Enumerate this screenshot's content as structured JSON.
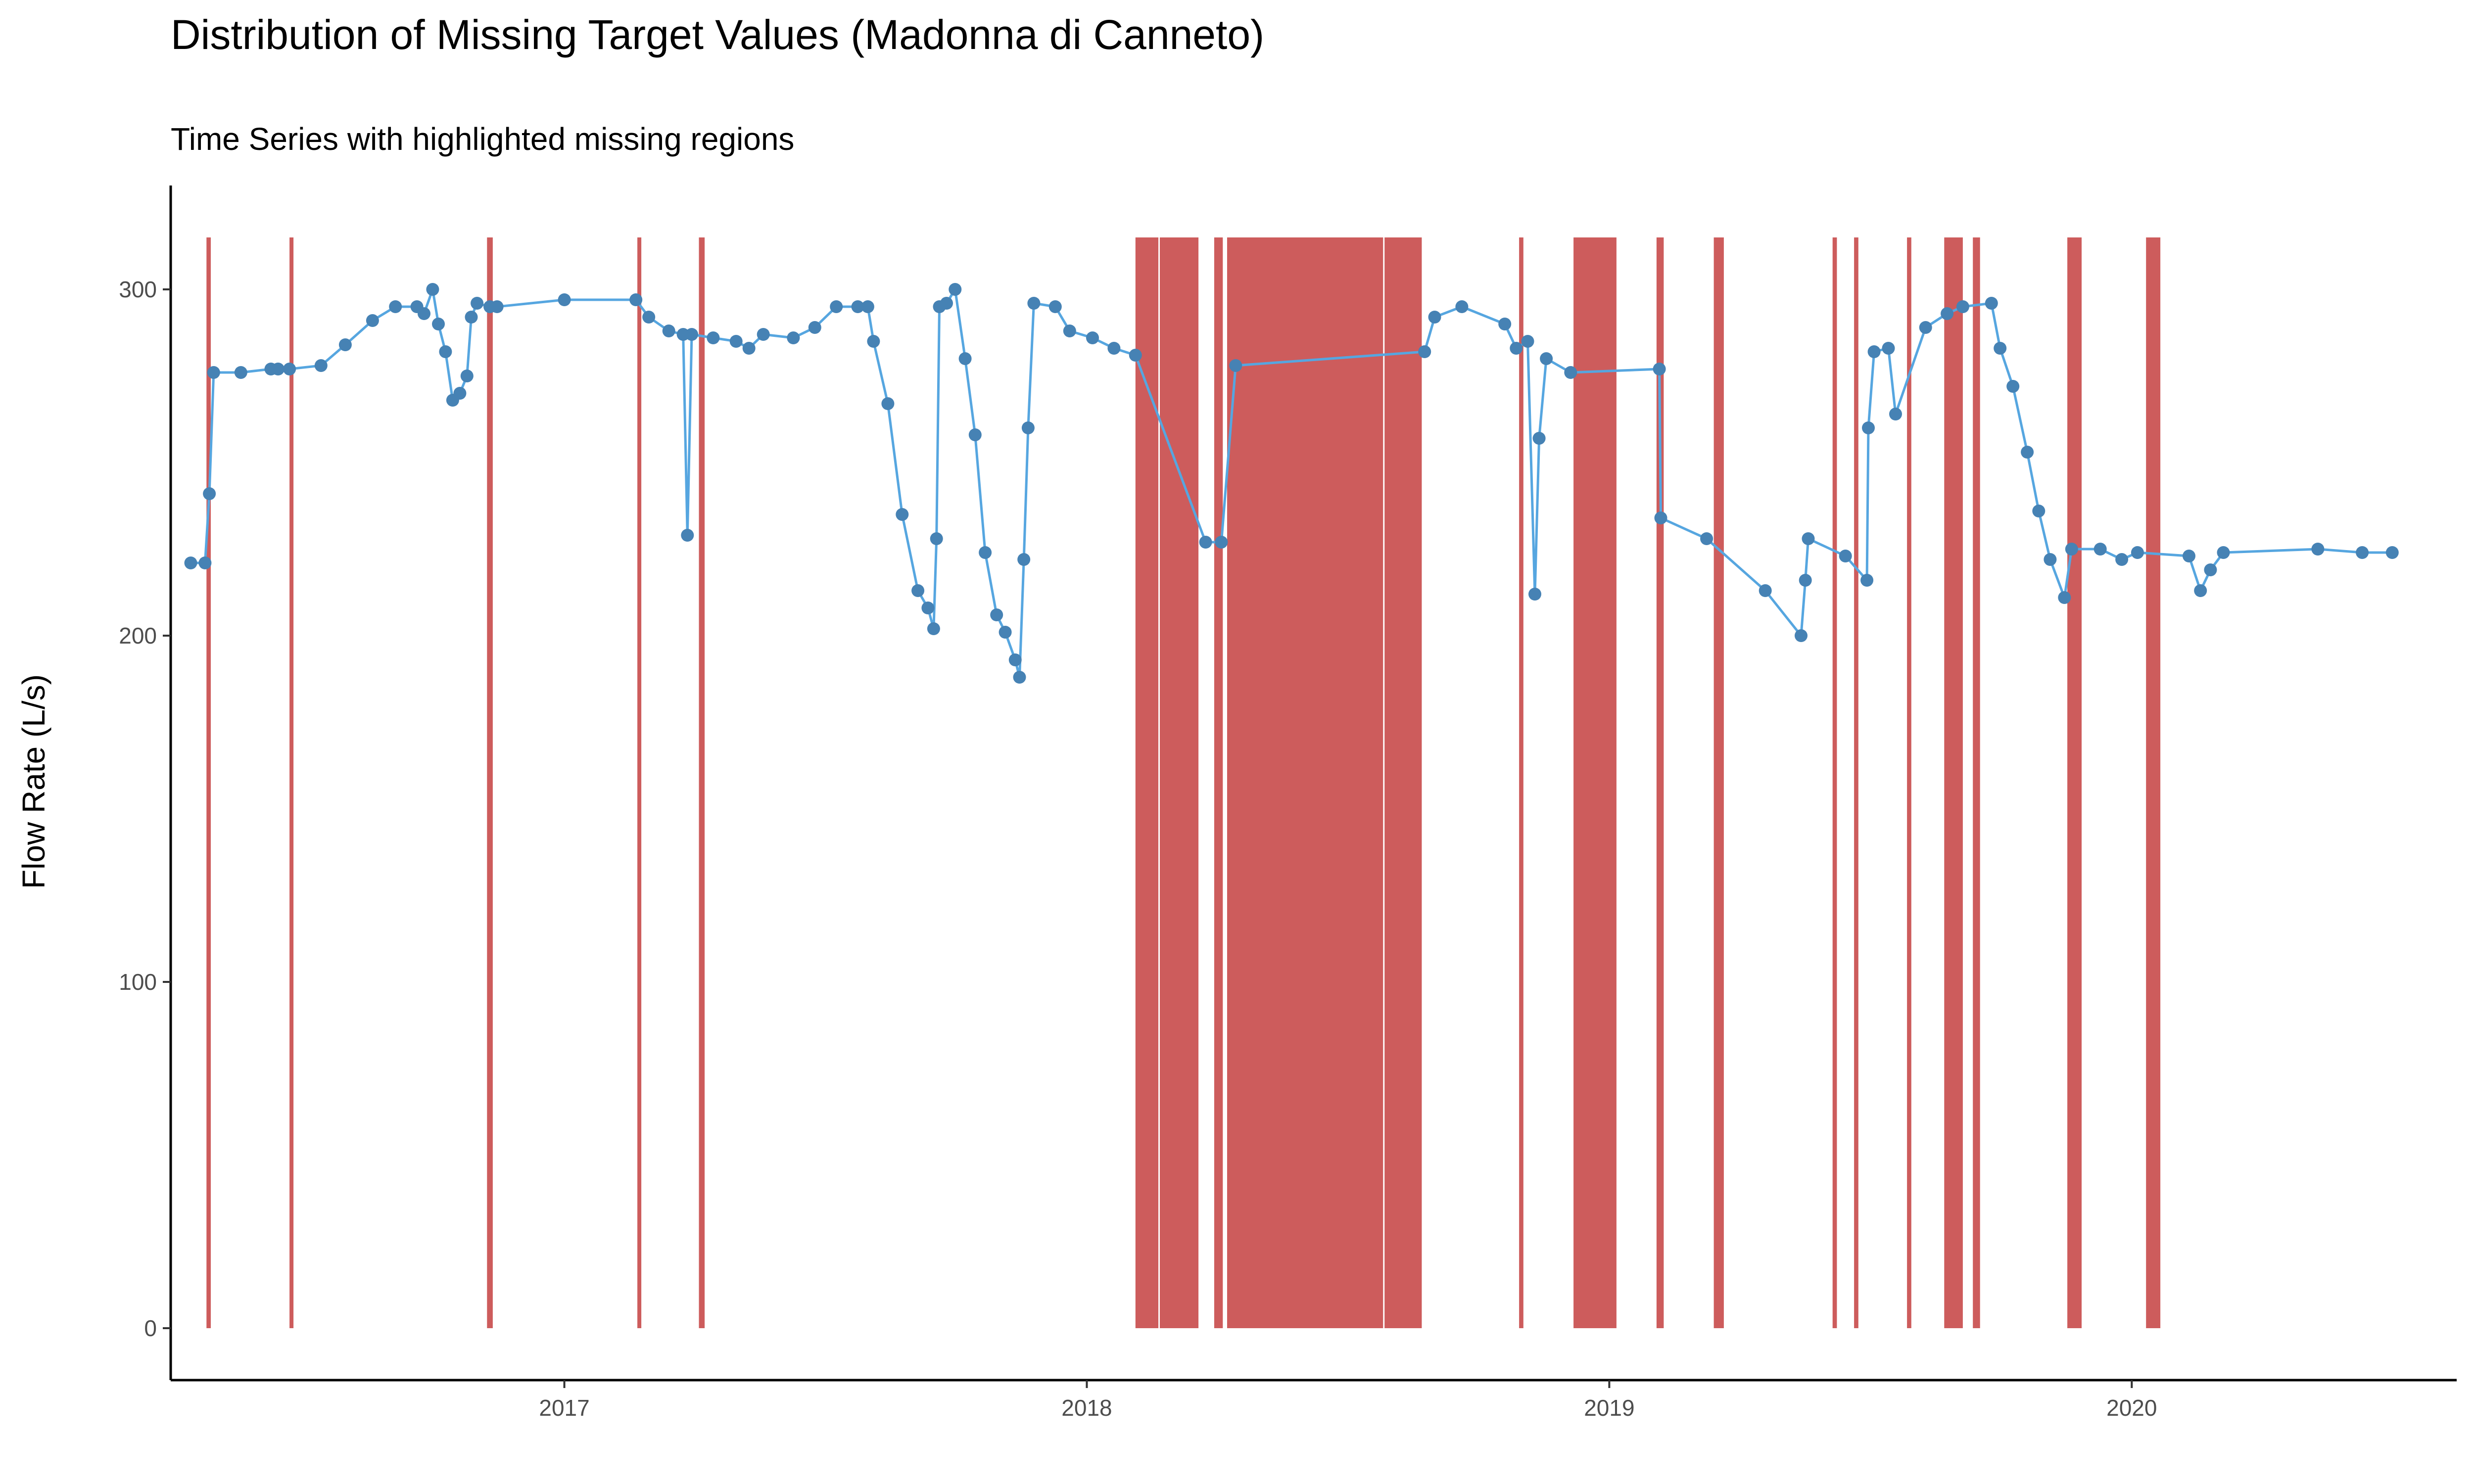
{
  "chart_data": {
    "type": "line",
    "title": "Distribution of Missing Target Values (Madonna di Canneto)",
    "subtitle": "Time Series with highlighted missing regions",
    "xlabel": "",
    "ylabel": "Flow Rate (L/s)",
    "x_ticks": [
      "2017",
      "2018",
      "2019",
      "2020"
    ],
    "y_ticks": [
      0,
      100,
      200,
      300
    ],
    "ylim": [
      -15,
      330
    ],
    "xlim": [
      "2016-04-01",
      "2020-08-15"
    ],
    "grid": false,
    "colors": {
      "missing": "#cd5c5c",
      "line": "#56a6e0",
      "points": "#4682b4",
      "axis": "#000000"
    },
    "series": [
      {
        "points": [
          [
            "2016-04-15",
            221
          ],
          [
            "2016-04-25",
            221
          ],
          [
            "2016-04-28",
            241
          ],
          [
            "2016-05-01",
            276
          ],
          [
            "2016-05-20",
            276
          ],
          [
            "2016-06-10",
            277
          ],
          [
            "2016-06-15",
            277
          ],
          [
            "2016-06-23",
            277
          ],
          [
            "2016-07-15",
            278
          ],
          [
            "2016-08-01",
            284
          ],
          [
            "2016-08-20",
            291
          ],
          [
            "2016-09-05",
            295
          ],
          [
            "2016-09-20",
            295
          ],
          [
            "2016-09-25",
            293
          ],
          [
            "2016-10-01",
            300
          ],
          [
            "2016-10-05",
            290
          ],
          [
            "2016-10-10",
            282
          ],
          [
            "2016-10-15",
            268
          ],
          [
            "2016-10-20",
            270
          ],
          [
            "2016-10-25",
            275
          ],
          [
            "2016-10-28",
            292
          ],
          [
            "2016-11-01",
            296
          ],
          [
            "2016-11-10",
            295
          ],
          [
            "2016-11-15",
            295
          ],
          [
            "2017-01-01",
            297
          ],
          [
            "2017-02-20",
            297
          ],
          [
            "2017-03-01",
            292
          ],
          [
            "2017-03-15",
            288
          ],
          [
            "2017-03-25",
            287
          ],
          [
            "2017-03-28",
            229
          ],
          [
            "2017-03-31",
            287
          ],
          [
            "2017-04-15",
            286
          ],
          [
            "2017-05-01",
            285
          ],
          [
            "2017-05-10",
            283
          ],
          [
            "2017-05-20",
            287
          ],
          [
            "2017-06-10",
            286
          ],
          [
            "2017-06-25",
            289
          ],
          [
            "2017-07-10",
            295
          ],
          [
            "2017-07-25",
            295
          ],
          [
            "2017-08-01",
            295
          ],
          [
            "2017-08-05",
            285
          ],
          [
            "2017-08-15",
            267
          ],
          [
            "2017-08-25",
            235
          ],
          [
            "2017-09-05",
            213
          ],
          [
            "2017-09-12",
            208
          ],
          [
            "2017-09-16",
            202
          ],
          [
            "2017-09-18",
            228
          ],
          [
            "2017-09-20",
            295
          ],
          [
            "2017-09-25",
            296
          ],
          [
            "2017-10-01",
            300
          ],
          [
            "2017-10-08",
            280
          ],
          [
            "2017-10-15",
            258
          ],
          [
            "2017-10-22",
            224
          ],
          [
            "2017-10-30",
            206
          ],
          [
            "2017-11-05",
            201
          ],
          [
            "2017-11-12",
            193
          ],
          [
            "2017-11-15",
            188
          ],
          [
            "2017-11-18",
            222
          ],
          [
            "2017-11-21",
            260
          ],
          [
            "2017-11-25",
            296
          ],
          [
            "2017-12-10",
            295
          ],
          [
            "2017-12-20",
            288
          ],
          [
            "2018-01-05",
            286
          ],
          [
            "2018-01-20",
            283
          ],
          [
            "2018-02-04",
            281
          ],
          [
            "2018-03-25",
            227
          ],
          [
            "2018-04-05",
            227
          ],
          [
            "2018-04-15",
            278
          ],
          [
            "2018-08-25",
            282
          ],
          [
            "2018-09-01",
            292
          ],
          [
            "2018-09-20",
            295
          ],
          [
            "2018-10-20",
            290
          ],
          [
            "2018-10-28",
            283
          ],
          [
            "2018-11-05",
            285
          ],
          [
            "2018-11-10",
            212
          ],
          [
            "2018-11-13",
            257
          ],
          [
            "2018-11-18",
            280
          ],
          [
            "2018-12-05",
            276
          ],
          [
            "2019-02-05",
            277
          ],
          [
            "2019-02-06",
            234
          ],
          [
            "2019-03-10",
            228
          ],
          [
            "2019-04-20",
            213
          ],
          [
            "2019-05-15",
            200
          ],
          [
            "2019-05-18",
            216
          ],
          [
            "2019-05-20",
            228
          ],
          [
            "2019-06-15",
            223
          ],
          [
            "2019-06-30",
            216
          ],
          [
            "2019-07-01",
            260
          ],
          [
            "2019-07-05",
            282
          ],
          [
            "2019-07-15",
            283
          ],
          [
            "2019-07-20",
            264
          ],
          [
            "2019-08-10",
            289
          ],
          [
            "2019-08-25",
            293
          ],
          [
            "2019-09-05",
            295
          ],
          [
            "2019-09-25",
            296
          ],
          [
            "2019-10-01",
            283
          ],
          [
            "2019-10-10",
            272
          ],
          [
            "2019-10-20",
            253
          ],
          [
            "2019-10-28",
            236
          ],
          [
            "2019-11-05",
            222
          ],
          [
            "2019-11-15",
            211
          ],
          [
            "2019-11-20",
            225
          ],
          [
            "2019-12-10",
            225
          ],
          [
            "2019-12-25",
            222
          ],
          [
            "2020-01-05",
            224
          ],
          [
            "2020-02-10",
            223
          ],
          [
            "2020-02-18",
            213
          ],
          [
            "2020-02-25",
            219
          ],
          [
            "2020-03-05",
            224
          ],
          [
            "2020-05-10",
            225
          ],
          [
            "2020-06-10",
            224
          ],
          [
            "2020-07-01",
            224
          ]
        ]
      }
    ],
    "missing_regions": [
      [
        "2016-04-26",
        "2016-04-29"
      ],
      [
        "2016-06-23",
        "2016-06-25"
      ],
      [
        "2016-11-08",
        "2016-11-12"
      ],
      [
        "2017-02-21",
        "2017-02-23"
      ],
      [
        "2017-04-05",
        "2017-04-09"
      ],
      [
        "2018-02-04",
        "2018-02-20"
      ],
      [
        "2018-02-21",
        "2018-03-20"
      ],
      [
        "2018-03-31",
        "2018-04-06"
      ],
      [
        "2018-04-09",
        "2018-07-27"
      ],
      [
        "2018-07-28",
        "2018-08-23"
      ],
      [
        "2018-10-30",
        "2018-11-02"
      ],
      [
        "2018-12-07",
        "2019-01-06"
      ],
      [
        "2019-02-03",
        "2019-02-08"
      ],
      [
        "2019-03-15",
        "2019-03-22"
      ],
      [
        "2019-06-06",
        "2019-06-09"
      ],
      [
        "2019-06-21",
        "2019-06-24"
      ],
      [
        "2019-07-28",
        "2019-07-31"
      ],
      [
        "2019-08-23",
        "2019-09-05"
      ],
      [
        "2019-09-12",
        "2019-09-17"
      ],
      [
        "2019-11-17",
        "2019-11-27"
      ],
      [
        "2020-01-11",
        "2020-01-21"
      ]
    ]
  }
}
